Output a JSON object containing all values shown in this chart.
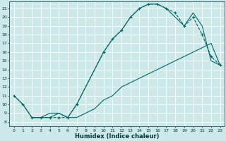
{
  "xlabel": "Humidex (Indice chaleur)",
  "bg_color": "#cce8e8",
  "grid_color": "#ffffff",
  "line_color": "#006666",
  "xlim": [
    -0.5,
    23.5
  ],
  "ylim": [
    7.5,
    21.8
  ],
  "xticks": [
    0,
    1,
    2,
    3,
    4,
    5,
    6,
    7,
    8,
    9,
    10,
    11,
    12,
    13,
    14,
    15,
    16,
    17,
    18,
    19,
    20,
    21,
    22,
    23
  ],
  "yticks": [
    8,
    9,
    10,
    11,
    12,
    13,
    14,
    15,
    16,
    17,
    18,
    19,
    20,
    21
  ],
  "series1_x": [
    0,
    1,
    2,
    3,
    4,
    5,
    6,
    7,
    10,
    11,
    12,
    13,
    14,
    15,
    16,
    17,
    18,
    19,
    20,
    21,
    22,
    23
  ],
  "series1_y": [
    11,
    10,
    8.5,
    8.5,
    8.5,
    8.5,
    8.5,
    10,
    16,
    17.5,
    18.5,
    20,
    21,
    21.5,
    21.5,
    21,
    20.5,
    19,
    20,
    18,
    15.5,
    14.5
  ],
  "series2_x": [
    0,
    1,
    2,
    3,
    4,
    5,
    6,
    7,
    8,
    9,
    10,
    11,
    12,
    13,
    14,
    15,
    16,
    17,
    18,
    19,
    20,
    21,
    22,
    23
  ],
  "series2_y": [
    11,
    10,
    8.5,
    8.5,
    9,
    9,
    8.5,
    8.5,
    9,
    9.5,
    10.5,
    11,
    12,
    12.5,
    13,
    13.5,
    14,
    14.5,
    15,
    15.5,
    16,
    16.5,
    17,
    14.5
  ],
  "series3_x": [
    2,
    3,
    4,
    5,
    6,
    7,
    10,
    11,
    12,
    13,
    14,
    15,
    16,
    17,
    18,
    19,
    20,
    21,
    22,
    23
  ],
  "series3_y": [
    8.5,
    8.5,
    8.5,
    9,
    8.5,
    10,
    16,
    17.5,
    18.5,
    20,
    21,
    21.5,
    21.5,
    21,
    20,
    19,
    20.5,
    19,
    15,
    14.5
  ]
}
